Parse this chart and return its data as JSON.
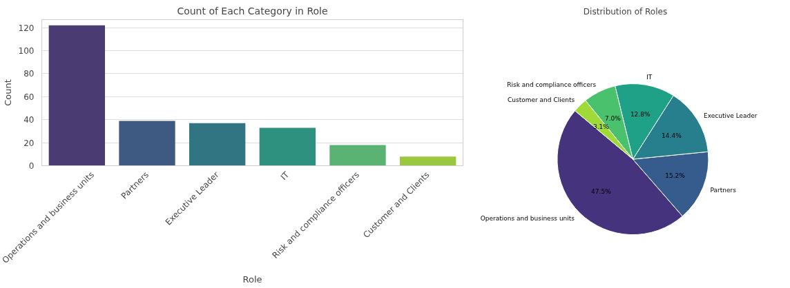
{
  "chart_data": [
    {
      "type": "bar",
      "title": "Count of Each Category in Role",
      "xlabel": "Role",
      "ylabel": "Count",
      "categories": [
        "Operations and business units",
        "Partners",
        "Executive Leader",
        "IT",
        "Risk and compliance officers",
        "Customer and Clients"
      ],
      "values": [
        122,
        39,
        37,
        33,
        18,
        8
      ],
      "colors": [
        "#4a3b73",
        "#3f5a82",
        "#317482",
        "#2e9180",
        "#5ab373",
        "#9ac73d"
      ],
      "ylim": [
        0,
        127
      ],
      "yticks": [
        0,
        20,
        40,
        60,
        80,
        100,
        120
      ],
      "grid": "y"
    },
    {
      "type": "pie",
      "title": "Distribution of Roles",
      "categories": [
        "Operations and business units",
        "Partners",
        "Executive Leader",
        "IT",
        "Risk and compliance officers",
        "Customer and Clients"
      ],
      "values": [
        47.5,
        15.2,
        14.4,
        12.8,
        7.0,
        3.1
      ],
      "value_labels": [
        "47.5%",
        "15.2%",
        "14.4%",
        "12.8%",
        "7.0%",
        "3.1%"
      ],
      "colors": [
        "#46337e",
        "#365c8d",
        "#277f8e",
        "#1fa187",
        "#4ac16d",
        "#a0da39"
      ]
    }
  ]
}
